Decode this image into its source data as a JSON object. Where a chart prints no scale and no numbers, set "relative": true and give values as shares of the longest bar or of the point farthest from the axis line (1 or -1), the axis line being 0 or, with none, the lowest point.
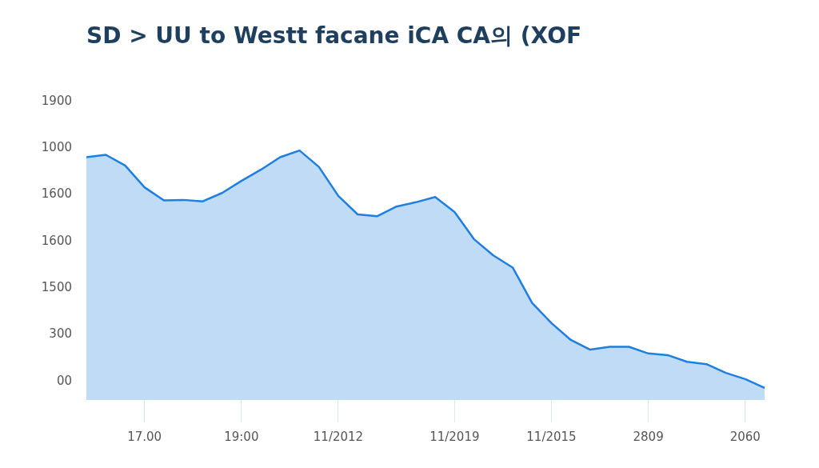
{
  "chart_data": {
    "type": "area",
    "title": "SD > UU to Westt facane iCA CA의 (XOF",
    "relative": true,
    "categories": [
      null,
      null,
      null,
      "17.00",
      null,
      null,
      null,
      null,
      "19:00",
      null,
      null,
      null,
      null,
      "11/2012",
      null,
      null,
      null,
      null,
      null,
      "11/2019",
      null,
      null,
      null,
      null,
      "11/2015",
      null,
      null,
      null,
      null,
      "2809",
      null,
      null,
      null,
      null,
      "2060",
      null
    ],
    "series": [
      {
        "color": "#1e7fe0",
        "values": [
          0.972,
          0.982,
          0.937,
          0.845,
          0.79,
          0.792,
          0.786,
          0.821,
          0.872,
          0.919,
          0.972,
          1,
          0.931,
          0.809,
          0.731,
          0.723,
          0.764,
          0.782,
          0.804,
          0.741,
          0.627,
          0.558,
          0.507,
          0.358,
          0.273,
          0.202,
          0.161,
          0.173,
          0.173,
          0.145,
          0.138,
          0.11,
          0.1,
          0.063,
          0.037,
          0
        ]
      }
    ],
    "annotations": [
      "1900",
      "1000",
      "1600",
      "1600",
      "1500",
      "300",
      "00"
    ],
    "legend": false,
    "marker": "none",
    "line_style": "solid"
  }
}
